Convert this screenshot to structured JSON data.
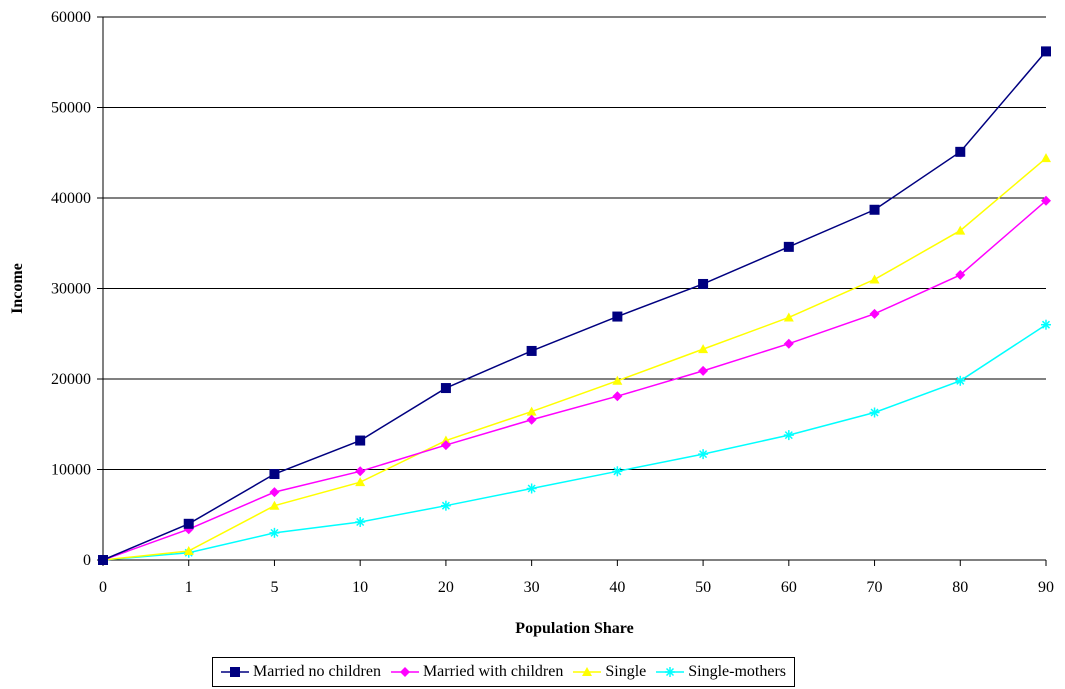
{
  "chart_data": {
    "type": "line",
    "title": "",
    "xlabel": "Population Share",
    "ylabel": "Income",
    "categories": [
      "0",
      "1",
      "5",
      "10",
      "20",
      "30",
      "40",
      "50",
      "60",
      "70",
      "80",
      "90"
    ],
    "ylim": [
      0,
      60000
    ],
    "yticks": [
      "0",
      "10000",
      "20000",
      "30000",
      "40000",
      "50000",
      "60000"
    ],
    "grid": "horizontal",
    "legend_position": "bottom",
    "series": [
      {
        "name": "Married no children",
        "color": "#000080",
        "marker": "square",
        "values": [
          0,
          4000,
          9500,
          13200,
          19000,
          23100,
          26900,
          30500,
          34600,
          38700,
          45100,
          56200
        ]
      },
      {
        "name": "Married with children",
        "color": "#ff00ff",
        "marker": "diamond",
        "values": [
          0,
          3400,
          7500,
          9800,
          12700,
          15500,
          18100,
          20900,
          23900,
          27200,
          31500,
          39700
        ]
      },
      {
        "name": "Single",
        "color": "#ffff00",
        "marker": "triangle",
        "values": [
          0,
          1000,
          6000,
          8600,
          13200,
          16400,
          19800,
          23300,
          26800,
          31000,
          36400,
          44400
        ]
      },
      {
        "name": "Single-mothers",
        "color": "#00ffff",
        "marker": "asterisk",
        "values": [
          0,
          800,
          3000,
          4200,
          6000,
          7900,
          9800,
          11700,
          13800,
          16300,
          19800,
          26000
        ]
      }
    ]
  }
}
